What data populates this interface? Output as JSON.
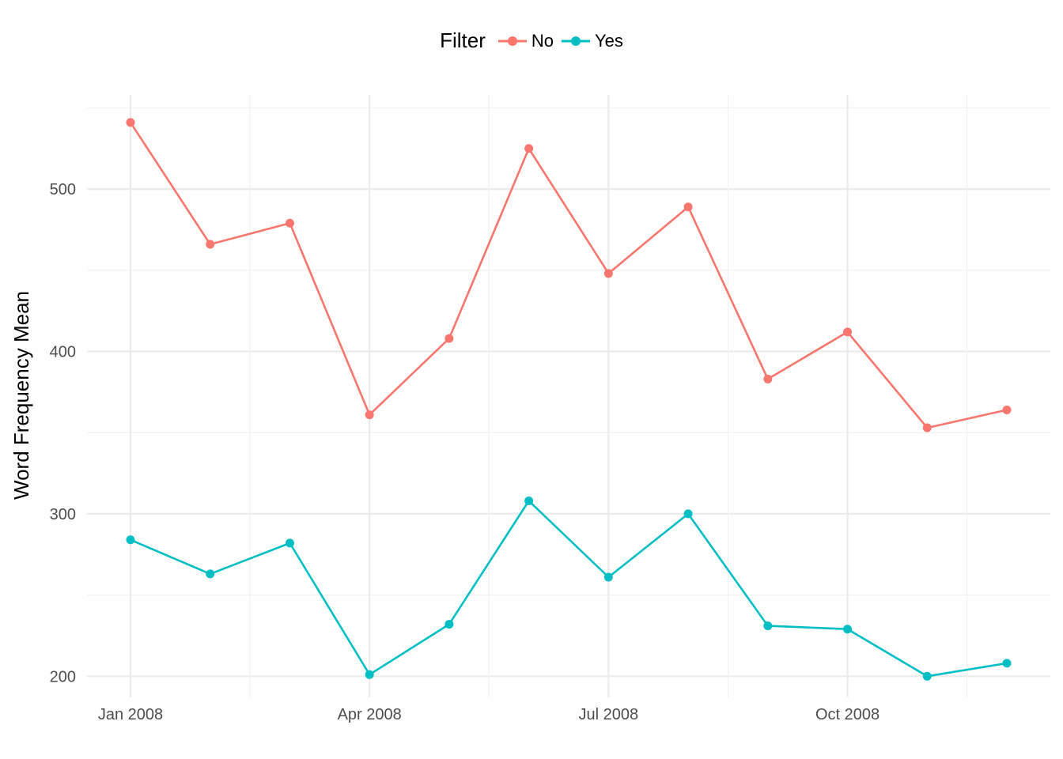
{
  "chart_data": {
    "type": "line",
    "xlabel": "",
    "ylabel": "Word Frequency Mean",
    "x_ticks": [
      "Jan 2008",
      "Apr 2008",
      "Jul 2008",
      "Oct 2008"
    ],
    "y_ticks": [
      "200",
      "300",
      "400",
      "500"
    ],
    "ylim": [
      187,
      558
    ],
    "grid": true,
    "legend": {
      "title": "Filter",
      "position": "top"
    },
    "x": [
      "2008-01-01",
      "2008-02-01",
      "2008-03-01",
      "2008-04-01",
      "2008-05-01",
      "2008-06-01",
      "2008-07-01",
      "2008-08-01",
      "2008-09-01",
      "2008-10-01",
      "2008-11-01",
      "2008-12-01"
    ],
    "series": [
      {
        "name": "No",
        "color": "#F8766D",
        "values": [
          541,
          466,
          479,
          361,
          408,
          525,
          448,
          489,
          383,
          412,
          353,
          364
        ]
      },
      {
        "name": "Yes",
        "color": "#00BFC4",
        "values": [
          284,
          263,
          282,
          201,
          232,
          308,
          261,
          300,
          231,
          229,
          200,
          208
        ]
      }
    ]
  }
}
